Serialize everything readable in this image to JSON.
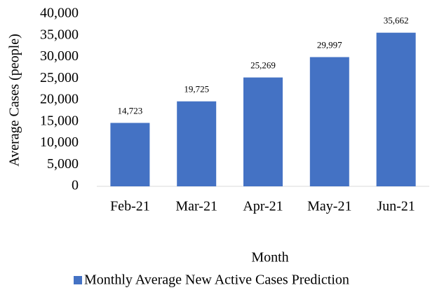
{
  "chart_data": {
    "type": "bar",
    "x_label": "Month",
    "y_label": "Average Cases (people)",
    "categories": [
      "Feb-21",
      "Mar-21",
      "Apr-21",
      "May-21",
      "Jun-21"
    ],
    "series": [
      {
        "name": "Monthly Average New Active Cases Prediction",
        "color": "#4472c4",
        "values": [
          14723,
          19725,
          25269,
          29997,
          35662
        ],
        "value_labels": [
          "14,723",
          "19,725",
          "25,269",
          "29,997",
          "35,662"
        ]
      }
    ],
    "ylim": [
      0,
      40000
    ],
    "yticks": [
      0,
      {
        "value": 5000,
        "label": "5,000"
      },
      {
        "value": 10000,
        "label": "10,000"
      },
      {
        "value": 15000,
        "label": "15,000"
      },
      {
        "value": 20000,
        "label": "20,000"
      },
      {
        "value": 25000,
        "label": "25,000"
      },
      {
        "value": 30000,
        "label": "30,000"
      },
      {
        "value": 35000,
        "label": "35,000"
      },
      {
        "value": 40000,
        "label": "40,000"
      }
    ],
    "grid": false,
    "legend": "bottom"
  }
}
